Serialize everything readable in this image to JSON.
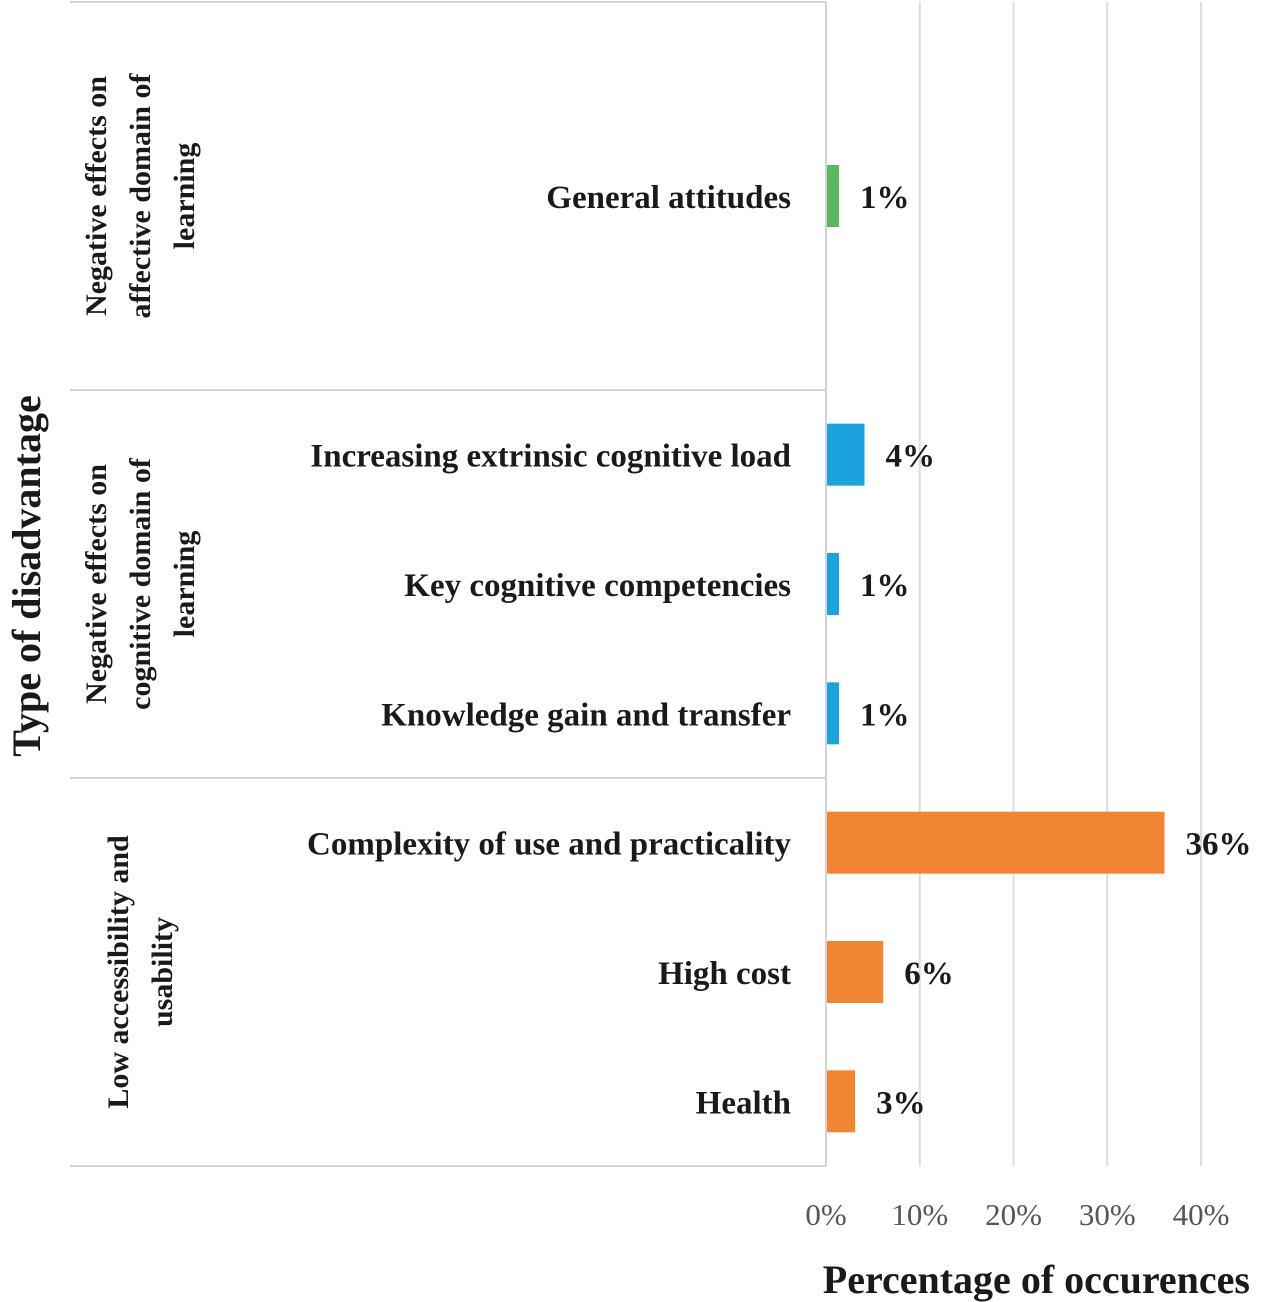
{
  "chart_data": {
    "type": "bar",
    "orientation": "horizontal",
    "xlabel": "Percentage of occurences",
    "ylabel": "Type of disadvantage",
    "xlim": [
      0,
      40
    ],
    "xticks": [
      "0%",
      "10%",
      "20%",
      "30%",
      "40%"
    ],
    "grid": true,
    "groups": [
      {
        "name": "Negative effects on affective domain of learning",
        "lines": [
          "Negative effects on",
          "affective domain of",
          "learning"
        ],
        "color": "#5cb85c",
        "items": [
          {
            "label": "General attitudes",
            "value": 1,
            "value_label": "1%"
          }
        ]
      },
      {
        "name": "Negative effects on cognitive domain of learning",
        "lines": [
          "Negative effects on",
          "cognitive domain of",
          "learning"
        ],
        "color": "#1aa3dd",
        "items": [
          {
            "label": "Increasing extrinsic cognitive load",
            "value": 4,
            "value_label": "4%"
          },
          {
            "label": "Key cognitive competencies",
            "value": 1,
            "value_label": "1%"
          },
          {
            "label": "Knowledge gain and transfer",
            "value": 1,
            "value_label": "1%"
          }
        ]
      },
      {
        "name": "Low accessibility and usability",
        "lines": [
          "Low accessibility and",
          "usability"
        ],
        "color": "#f28532",
        "items": [
          {
            "label": "Complexity of use and practicality",
            "value": 36,
            "value_label": "36%"
          },
          {
            "label": "High cost",
            "value": 6,
            "value_label": "6%"
          },
          {
            "label": "Health",
            "value": 3,
            "value_label": "3%"
          }
        ]
      }
    ]
  }
}
